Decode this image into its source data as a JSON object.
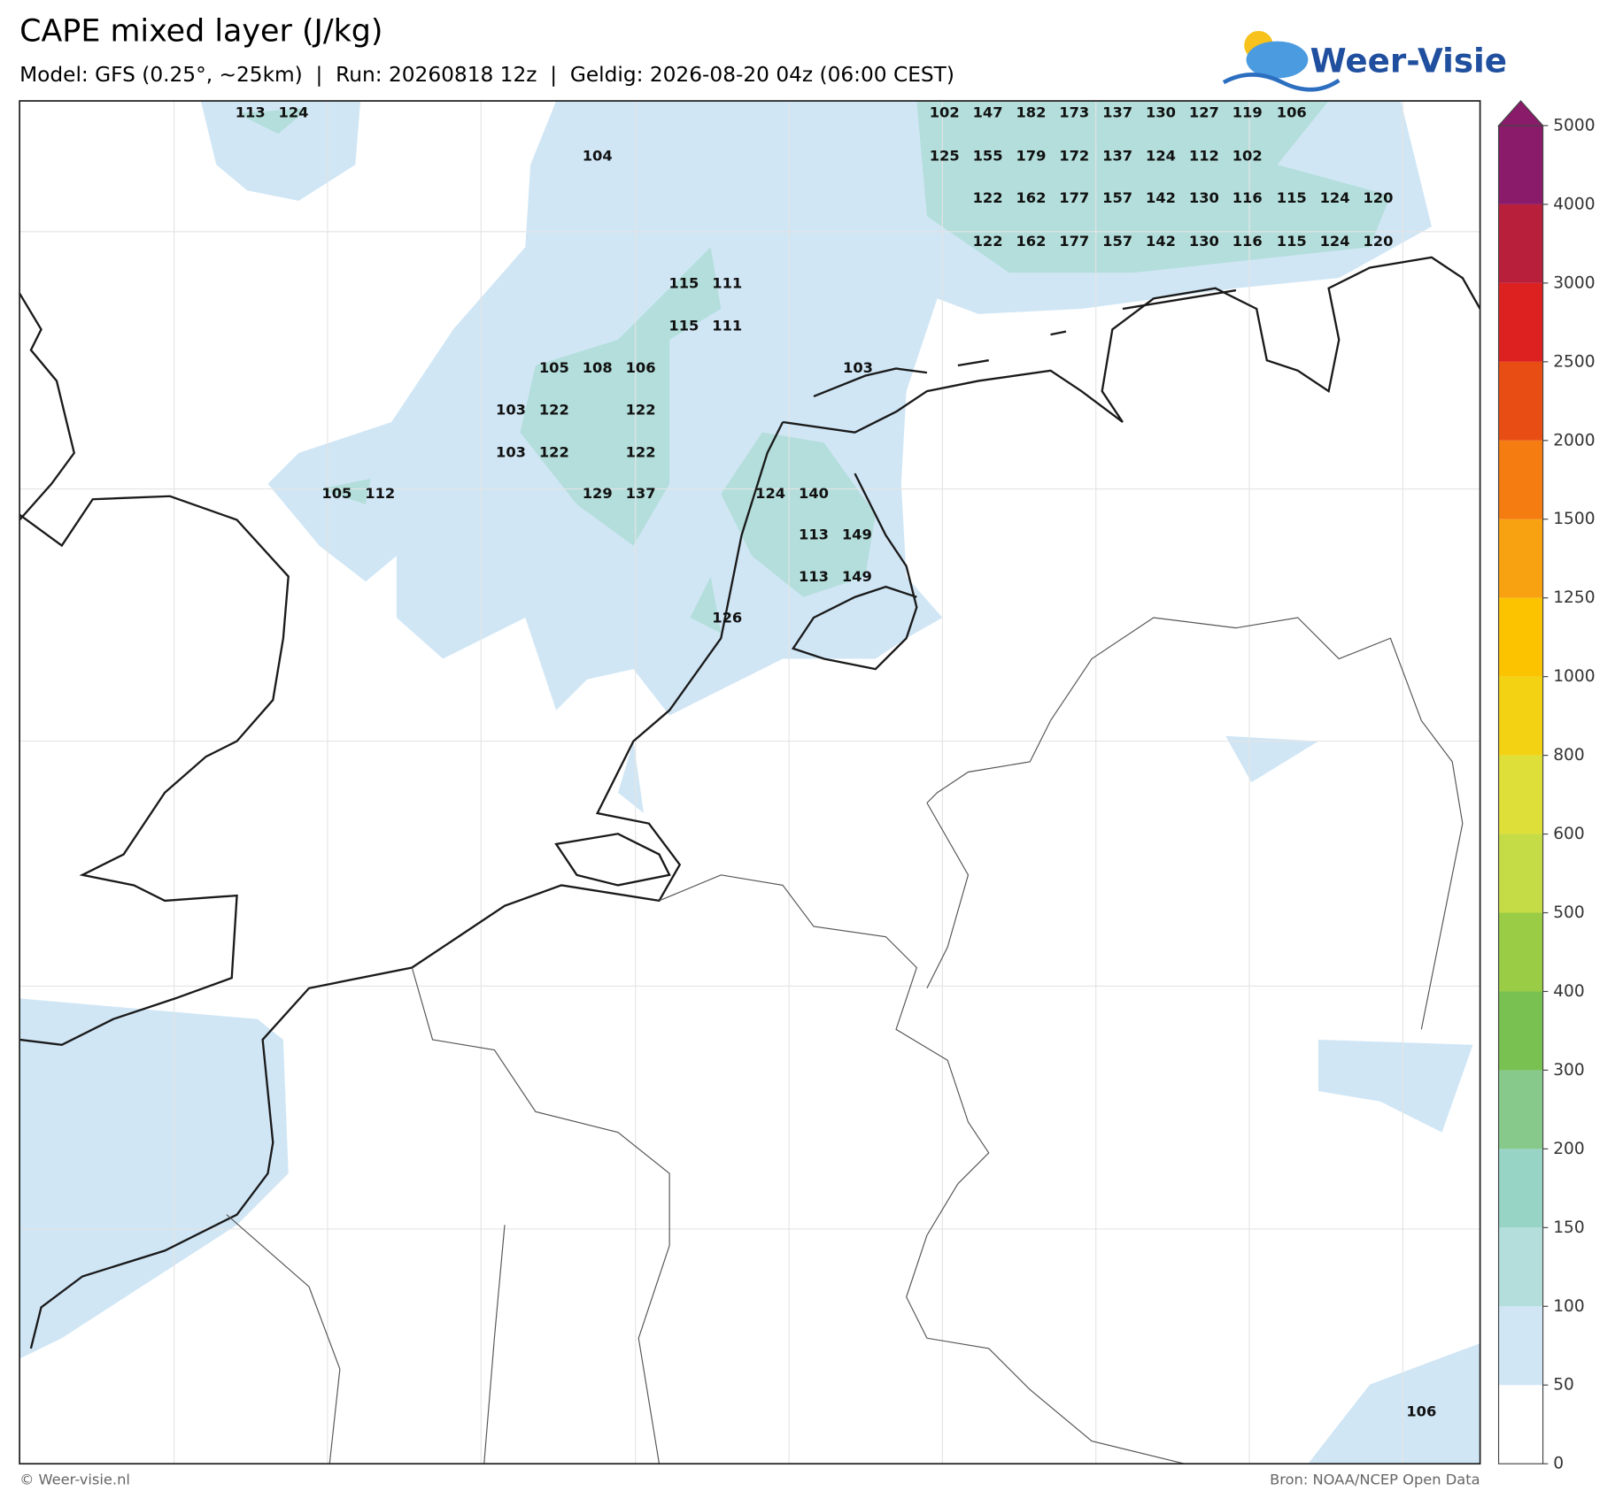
{
  "title": "CAPE mixed layer (J/kg)",
  "subtitle": "Model: GFS (0.25°, ~25km)  |  Run: 20260818 12z  |  Geldig: 2026-08-20 04z (06:00 CEST)",
  "logo": "Weer-Visie",
  "credit": "© Weer-visie.nl",
  "source": "Bron: NOAA/NCEP Open Data",
  "colorbar": {
    "ticks": [
      0,
      50,
      100,
      150,
      200,
      300,
      400,
      500,
      600,
      800,
      1000,
      1250,
      1500,
      2000,
      2500,
      3000,
      4000,
      5000
    ],
    "colors": [
      "#ffffff",
      "#d0e6f5",
      "#b3dedb",
      "#98d4c6",
      "#86c98a",
      "#79c150",
      "#9acc45",
      "#c5dc46",
      "#dedf38",
      "#f3d213",
      "#fbc300",
      "#f8a211",
      "#f47c10",
      "#e84e14",
      "#dd2020",
      "#b81f3a",
      "#8a1a6a"
    ]
  },
  "labels": [
    [
      113,
      124,
      102,
      147,
      182,
      173,
      137,
      130,
      127,
      119,
      106
    ],
    [
      104,
      125,
      155,
      179,
      172,
      137,
      124,
      112,
      102
    ],
    [
      122,
      162,
      177,
      157,
      142,
      130,
      116,
      115,
      124,
      120
    ],
    [
      122,
      162,
      177,
      157,
      142,
      130,
      116,
      115,
      124,
      120
    ],
    [
      115,
      111
    ],
    [
      115,
      111
    ],
    [
      105,
      108,
      106,
      103
    ],
    [
      103,
      122,
      122
    ],
    [
      103,
      122,
      122
    ],
    [
      105,
      112,
      129,
      137,
      124,
      140
    ],
    [
      113,
      149
    ],
    [
      113,
      149
    ],
    [
      126
    ],
    [
      106
    ]
  ]
}
